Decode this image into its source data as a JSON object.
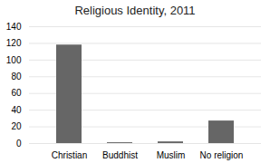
{
  "chart_data": {
    "type": "bar",
    "title": "Religious Identity, 2011",
    "categories": [
      "Christian",
      "Buddhist",
      "Muslim",
      "No religion"
    ],
    "values": [
      118,
      1,
      2,
      27
    ],
    "color": "#666666",
    "ylim": [
      0,
      140
    ],
    "yticks": [
      0,
      20,
      40,
      60,
      80,
      100,
      120,
      140
    ],
    "grid": true
  }
}
